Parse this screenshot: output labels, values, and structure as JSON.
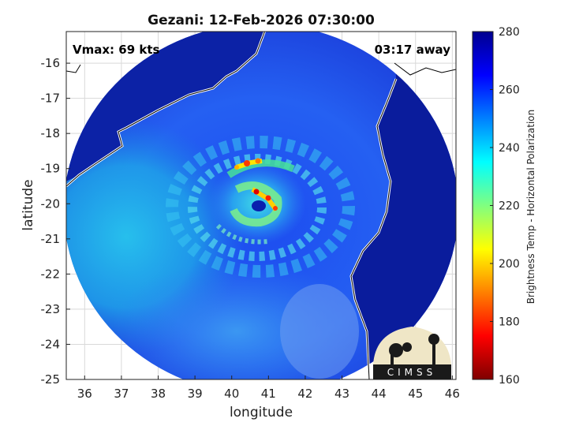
{
  "title": "Gezani: 12-Feb-2026 07:30:00",
  "vmax_label": "Vmax: 69 kts",
  "time_away_label": "03:17 away",
  "xlabel": "longitude",
  "ylabel": "latitude",
  "colorbar_label": "Brightness Temp - Horizontal Polarization",
  "logo_text": "CIMSS",
  "chart_data": {
    "type": "heatmap",
    "title": "Gezani: 12-Feb-2026 07:30:00",
    "xlabel": "longitude",
    "ylabel": "latitude",
    "xlim": [
      35.5,
      46.1
    ],
    "ylim": [
      -25,
      -15.1
    ],
    "xticks": [
      36,
      37,
      38,
      39,
      40,
      41,
      42,
      43,
      44,
      45,
      46
    ],
    "yticks": [
      -16,
      -17,
      -18,
      -19,
      -20,
      -21,
      -22,
      -23,
      -24,
      -25
    ],
    "grid": true,
    "storm_center": {
      "lon": 40.8,
      "lat": -20.0
    },
    "colorbar": {
      "min": 160,
      "max": 280,
      "ticks": [
        280,
        260,
        240,
        220,
        200,
        180,
        160
      ],
      "colormap": [
        "#7f0000",
        "#ff0000",
        "#ff8000",
        "#ffff00",
        "#80ff80",
        "#00ffff",
        "#0080ff",
        "#0000ff",
        "#00008f"
      ]
    }
  },
  "colors": {
    "ocean_far": "#1a3ad8",
    "land": "#0a1c9c",
    "coast": "#ffffff"
  }
}
